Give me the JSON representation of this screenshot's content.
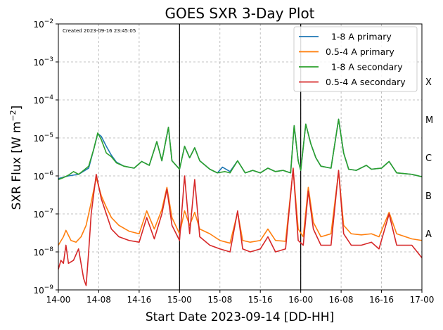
{
  "chart_data": {
    "type": "line",
    "title": "GOES SXR 3-Day Plot",
    "xlabel": "Start Date 2023-09-14 [DD-HH]",
    "ylabel_main": "SXR Flux [W m",
    "ylabel_exp": "−2",
    "ylabel_close": "]",
    "annotation": "Created 2023-09-16 23:45:05",
    "x_unit": "hours since 14-00",
    "xlim": [
      0,
      72
    ],
    "ylim": [
      1e-09,
      0.01
    ],
    "yscale": "log",
    "grid": true,
    "legend_position": "top-right",
    "x_ticks": [
      {
        "value": 0,
        "label": "14-00"
      },
      {
        "value": 8,
        "label": "14-08"
      },
      {
        "value": 16,
        "label": "14-16"
      },
      {
        "value": 24,
        "label": "15-00"
      },
      {
        "value": 32,
        "label": "15-08"
      },
      {
        "value": 40,
        "label": "15-16"
      },
      {
        "value": 48,
        "label": "16-00"
      },
      {
        "value": 56,
        "label": "16-08"
      },
      {
        "value": 64,
        "label": "16-16"
      },
      {
        "value": 72,
        "label": "17-00"
      }
    ],
    "y_ticks": [
      {
        "value": 1e-09,
        "base": "10",
        "exp": "−9"
      },
      {
        "value": 1e-08,
        "base": "10",
        "exp": "−8"
      },
      {
        "value": 1e-07,
        "base": "10",
        "exp": "−7"
      },
      {
        "value": 1e-06,
        "base": "10",
        "exp": "−6"
      },
      {
        "value": 1e-05,
        "base": "10",
        "exp": "−5"
      },
      {
        "value": 0.0001,
        "base": "10",
        "exp": "−4"
      },
      {
        "value": 0.001,
        "base": "10",
        "exp": "−3"
      },
      {
        "value": 0.01,
        "base": "10",
        "exp": "−2"
      }
    ],
    "flare_classes": [
      {
        "label": "A",
        "value": 3e-08
      },
      {
        "label": "B",
        "value": 3e-07
      },
      {
        "label": "C",
        "value": 3e-06
      },
      {
        "label": "M",
        "value": 3e-05
      },
      {
        "label": "X",
        "value": 0.0003
      }
    ],
    "day_boundaries": [
      24,
      48
    ],
    "series": [
      {
        "name": "  1-8 A primary",
        "color": "#1f77b4",
        "points": [
          [
            0,
            8.5e-07
          ],
          [
            2,
            1e-06
          ],
          [
            4,
            1.1e-06
          ],
          [
            6,
            1.6e-06
          ],
          [
            7,
            5e-06
          ],
          [
            7.8,
            1.3e-05
          ],
          [
            8.5,
            1.1e-05
          ],
          [
            9.5,
            6e-06
          ],
          [
            10.5,
            3.5e-06
          ],
          [
            11.5,
            2.3e-06
          ],
          [
            13,
            1.8e-06
          ],
          [
            15,
            1.6e-06
          ],
          [
            16.5,
            2.4e-06
          ],
          [
            18,
            1.9e-06
          ],
          [
            19.5,
            8e-06
          ],
          [
            20.5,
            2.5e-06
          ],
          [
            21.8,
            1.9e-05
          ],
          [
            22.5,
            2.5e-06
          ],
          [
            24,
            1.5e-06
          ],
          [
            25,
            6e-06
          ],
          [
            26,
            3e-06
          ],
          [
            27,
            5.5e-06
          ],
          [
            28,
            2.5e-06
          ],
          [
            30,
            1.5e-06
          ],
          [
            31.5,
            1.2e-06
          ],
          [
            32.5,
            1.7e-06
          ],
          [
            34,
            1.3e-06
          ],
          [
            35.5,
            2.5e-06
          ],
          [
            37,
            1.2e-06
          ],
          [
            38.5,
            1.4e-06
          ],
          [
            40,
            1.2e-06
          ],
          [
            41.5,
            1.6e-06
          ],
          [
            43,
            1.3e-06
          ],
          [
            44.5,
            1.4e-06
          ],
          [
            46,
            1.2e-06
          ],
          [
            46.7,
            2.1e-05
          ],
          [
            47.5,
            2.5e-06
          ],
          [
            48,
            1.4e-06
          ],
          [
            49,
            2.3e-05
          ],
          [
            50,
            7e-06
          ],
          [
            51,
            3e-06
          ],
          [
            52,
            1.8e-06
          ],
          [
            54,
            1.6e-06
          ],
          [
            55.5,
            3.1e-05
          ],
          [
            56.5,
            4e-06
          ],
          [
            57.5,
            1.5e-06
          ],
          [
            59,
            1.4e-06
          ],
          [
            61,
            1.9e-06
          ],
          [
            62,
            1.5e-06
          ],
          [
            64,
            1.6e-06
          ],
          [
            65.5,
            2.4e-06
          ],
          [
            67,
            1.2e-06
          ],
          [
            70,
            1.1e-06
          ],
          [
            72,
            9.5e-07
          ]
        ]
      },
      {
        "name": "0.5-4 A primary",
        "color": "#ff7f0e",
        "points": [
          [
            0,
            1.5e-08
          ],
          [
            1,
            2.5e-08
          ],
          [
            1.5,
            3.7e-08
          ],
          [
            2.5,
            2e-08
          ],
          [
            3.5,
            1.8e-08
          ],
          [
            4.5,
            2.5e-08
          ],
          [
            5.5,
            5e-08
          ],
          [
            6.5,
            2e-07
          ],
          [
            7.5,
            9e-07
          ],
          [
            8.5,
            3e-07
          ],
          [
            9.5,
            1.5e-07
          ],
          [
            10.5,
            8e-08
          ],
          [
            12,
            5e-08
          ],
          [
            14,
            3.5e-08
          ],
          [
            16,
            3e-08
          ],
          [
            17.5,
            1.2e-07
          ],
          [
            19,
            4e-08
          ],
          [
            20.5,
            1.3e-07
          ],
          [
            21.5,
            5e-07
          ],
          [
            22.5,
            8e-08
          ],
          [
            24,
            3e-08
          ],
          [
            25,
            1.2e-07
          ],
          [
            26,
            5e-08
          ],
          [
            27,
            1.1e-07
          ],
          [
            28,
            4e-08
          ],
          [
            30,
            3e-08
          ],
          [
            32,
            2e-08
          ],
          [
            34,
            1.7e-08
          ],
          [
            35.5,
            1.1e-07
          ],
          [
            36.5,
            2e-08
          ],
          [
            38,
            1.8e-08
          ],
          [
            40,
            2e-08
          ],
          [
            41.5,
            4e-08
          ],
          [
            43,
            2e-08
          ],
          [
            45,
            1.9e-08
          ],
          [
            46.5,
            1.5e-06
          ],
          [
            47.5,
            4e-08
          ],
          [
            48.5,
            2.5e-08
          ],
          [
            49.5,
            5e-07
          ],
          [
            50.5,
            6e-08
          ],
          [
            52,
            2.5e-08
          ],
          [
            54,
            3e-08
          ],
          [
            55.5,
            1.3e-06
          ],
          [
            56.5,
            5e-08
          ],
          [
            58,
            3e-08
          ],
          [
            60,
            2.8e-08
          ],
          [
            62,
            3e-08
          ],
          [
            63.5,
            2.5e-08
          ],
          [
            65.5,
            1.1e-07
          ],
          [
            67,
            3e-08
          ],
          [
            70,
            2.2e-08
          ],
          [
            72,
            2e-08
          ]
        ]
      },
      {
        "name": "  1-8 A secondary",
        "color": "#2ca02c",
        "points": [
          [
            0,
            8e-07
          ],
          [
            1,
            9e-07
          ],
          [
            2,
            1.05e-06
          ],
          [
            3,
            1.3e-06
          ],
          [
            4,
            1.1e-06
          ],
          [
            5,
            1.4e-06
          ],
          [
            6,
            1.8e-06
          ],
          [
            7,
            5e-06
          ],
          [
            7.8,
            1.35e-05
          ],
          [
            8.5,
            9e-06
          ],
          [
            9.5,
            4e-06
          ],
          [
            10.5,
            3.2e-06
          ],
          [
            11.5,
            2.2e-06
          ],
          [
            13,
            1.8e-06
          ],
          [
            15,
            1.6e-06
          ],
          [
            16.5,
            2.4e-06
          ],
          [
            18,
            1.9e-06
          ],
          [
            19.5,
            8e-06
          ],
          [
            20.5,
            2.5e-06
          ],
          [
            21.8,
            1.9e-05
          ],
          [
            22.5,
            2.5e-06
          ],
          [
            24,
            1.5e-06
          ],
          [
            25,
            6e-06
          ],
          [
            26,
            3e-06
          ],
          [
            27,
            5.5e-06
          ],
          [
            28,
            2.5e-06
          ],
          [
            30,
            1.5e-06
          ],
          [
            31.5,
            1.2e-06
          ],
          [
            33,
            1.3e-06
          ],
          [
            34,
            1.2e-06
          ],
          [
            35.5,
            2.5e-06
          ],
          [
            37,
            1.2e-06
          ],
          [
            38.5,
            1.4e-06
          ],
          [
            40,
            1.2e-06
          ],
          [
            41.5,
            1.6e-06
          ],
          [
            43,
            1.3e-06
          ],
          [
            44.5,
            1.4e-06
          ],
          [
            46,
            1.2e-06
          ],
          [
            46.7,
            2.1e-05
          ],
          [
            47.5,
            2.5e-06
          ],
          [
            48,
            1.4e-06
          ],
          [
            49,
            2.3e-05
          ],
          [
            50,
            7e-06
          ],
          [
            51,
            3e-06
          ],
          [
            52,
            1.8e-06
          ],
          [
            54,
            1.6e-06
          ],
          [
            55.5,
            3.1e-05
          ],
          [
            56.5,
            4e-06
          ],
          [
            57.5,
            1.5e-06
          ],
          [
            59,
            1.4e-06
          ],
          [
            61,
            1.9e-06
          ],
          [
            62,
            1.5e-06
          ],
          [
            64,
            1.6e-06
          ],
          [
            65.5,
            2.4e-06
          ],
          [
            67,
            1.2e-06
          ],
          [
            70,
            1.1e-06
          ],
          [
            72,
            9.5e-07
          ]
        ]
      },
      {
        "name": "0.5-4 A secondary",
        "color": "#d62728",
        "points": [
          [
            0,
            3.5e-09
          ],
          [
            0.5,
            6e-09
          ],
          [
            1,
            5e-09
          ],
          [
            1.5,
            1.5e-08
          ],
          [
            2,
            5e-09
          ],
          [
            3,
            6e-09
          ],
          [
            4,
            1.2e-08
          ],
          [
            5,
            2e-09
          ],
          [
            5.5,
            1.3e-09
          ],
          [
            6,
            1e-08
          ],
          [
            6.5,
            1e-07
          ],
          [
            7.5,
            1.1e-06
          ],
          [
            8.5,
            2.5e-07
          ],
          [
            9.5,
            1e-07
          ],
          [
            10.5,
            4e-08
          ],
          [
            12,
            2.5e-08
          ],
          [
            14,
            2e-08
          ],
          [
            16,
            1.8e-08
          ],
          [
            17.5,
            8e-08
          ],
          [
            19,
            2.2e-08
          ],
          [
            20.5,
            1e-07
          ],
          [
            21.5,
            4.5e-07
          ],
          [
            22.5,
            5e-08
          ],
          [
            24,
            2e-08
          ],
          [
            25,
            1e-06
          ],
          [
            26,
            3e-08
          ],
          [
            27,
            8e-07
          ],
          [
            28,
            2.5e-08
          ],
          [
            30,
            1.5e-08
          ],
          [
            32,
            1.2e-08
          ],
          [
            34,
            1e-08
          ],
          [
            35.5,
            1.2e-07
          ],
          [
            36.5,
            1.2e-08
          ],
          [
            38,
            1e-08
          ],
          [
            40,
            1.2e-08
          ],
          [
            41.5,
            2.5e-08
          ],
          [
            43,
            1e-08
          ],
          [
            45,
            1.2e-08
          ],
          [
            46.5,
            1.6e-06
          ],
          [
            47.5,
            2e-08
          ],
          [
            48.5,
            1.5e-08
          ],
          [
            49.5,
            4e-07
          ],
          [
            50.5,
            4e-08
          ],
          [
            52,
            1.5e-08
          ],
          [
            54,
            1.5e-08
          ],
          [
            55.5,
            1.4e-06
          ],
          [
            56.5,
            3e-08
          ],
          [
            58,
            1.5e-08
          ],
          [
            60,
            1.5e-08
          ],
          [
            62,
            1.8e-08
          ],
          [
            63.5,
            1.2e-08
          ],
          [
            65.5,
            1e-07
          ],
          [
            67,
            1.5e-08
          ],
          [
            70,
            1.5e-08
          ],
          [
            72,
            7e-09
          ]
        ]
      }
    ]
  }
}
